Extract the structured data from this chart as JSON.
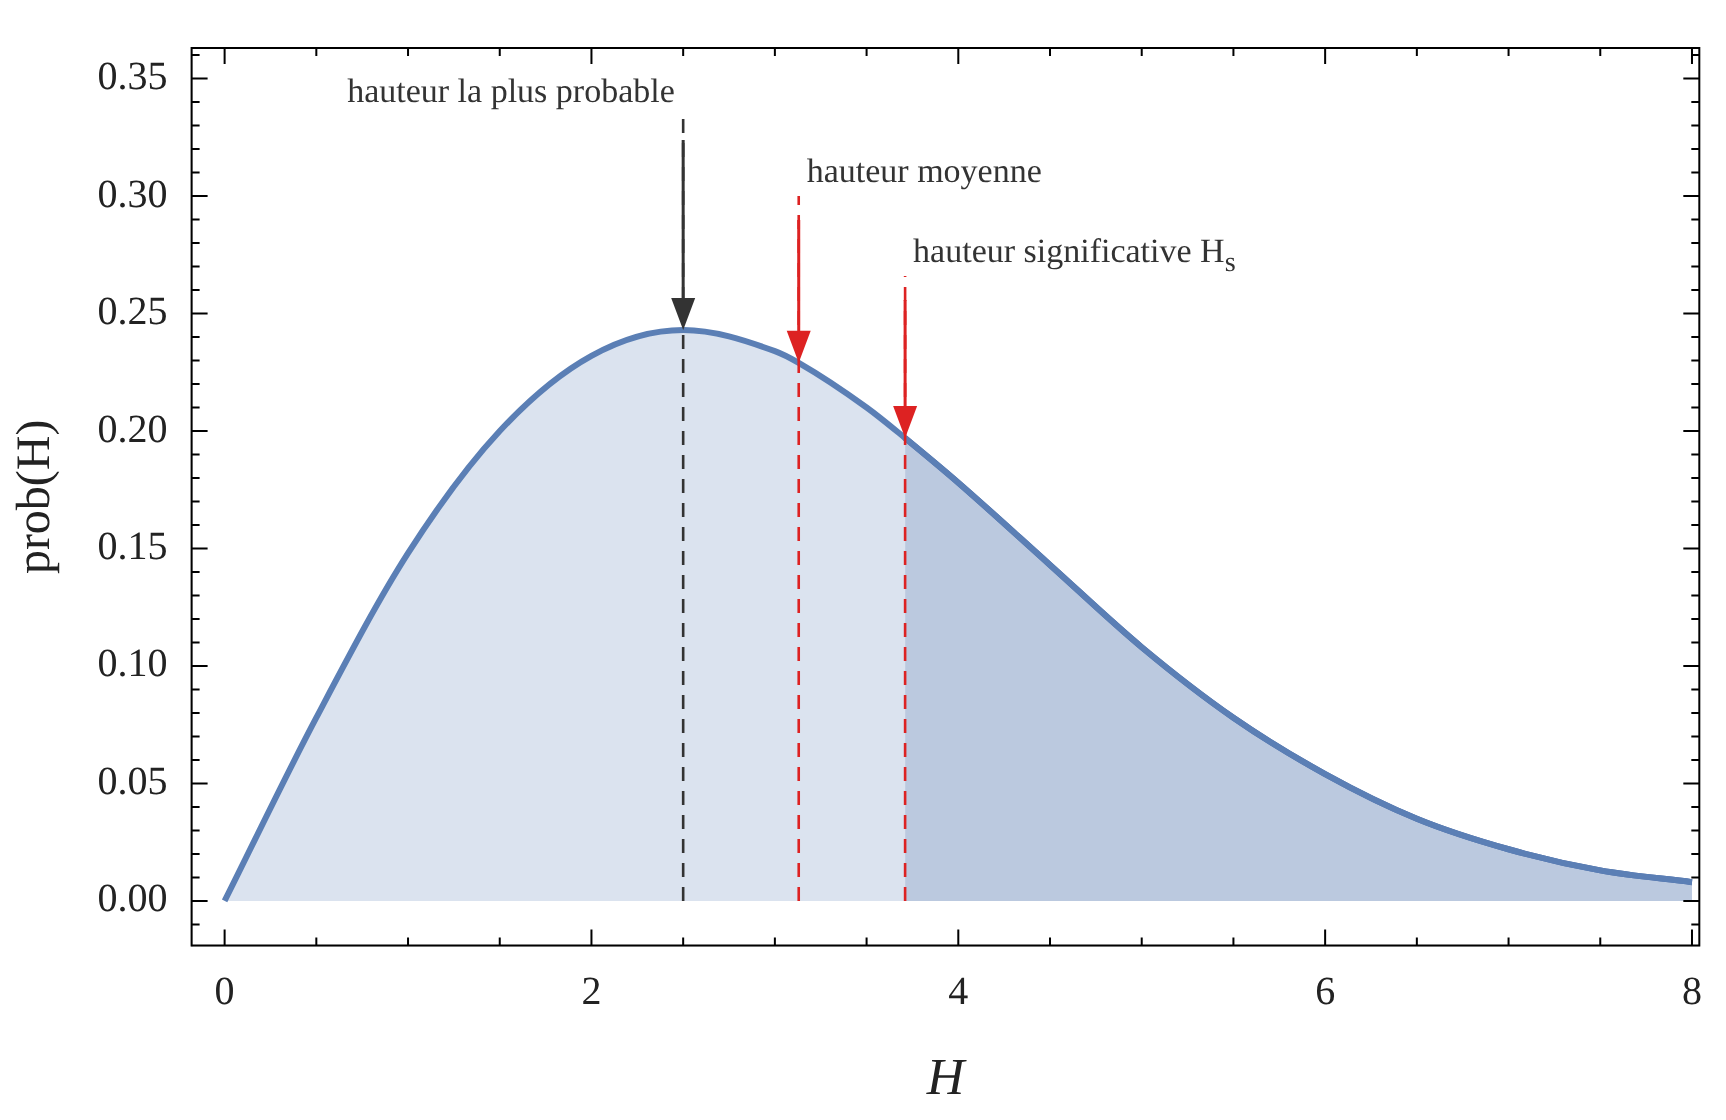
{
  "chart_data": {
    "type": "area",
    "xlabel": "H",
    "ylabel": "prob(H)",
    "series": [
      {
        "color": "#5b7fb5",
        "x": [
          0,
          0.5,
          1,
          1.5,
          2,
          2.5,
          3,
          3.13,
          3.5,
          3.71,
          4,
          4.5,
          5,
          5.5,
          6,
          6.5,
          7,
          7.5,
          8
        ],
        "values": [
          0,
          0.078,
          0.148,
          0.2,
          0.232,
          0.243,
          0.234,
          0.229,
          0.21,
          0.197,
          0.178,
          0.143,
          0.108,
          0.078,
          0.054,
          0.035,
          0.022,
          0.013,
          0.008
        ]
      },
      {
        "color": "#4a6aa5",
        "x": [
          3.71,
          4,
          4.5,
          5,
          5.5,
          6,
          6.5,
          7,
          7.5,
          8
        ],
        "values": [
          0.197,
          0.178,
          0.143,
          0.108,
          0.078,
          0.054,
          0.035,
          0.022,
          0.013,
          0.008
        ]
      }
    ],
    "xlim": [
      -0.18,
      8.04
    ],
    "xticks": [
      0,
      2,
      4,
      6,
      8
    ],
    "ylim": [
      -0.019,
      0.363
    ],
    "yticks": [
      {
        "value": 0,
        "label": "0.00"
      },
      {
        "value": 0.05,
        "label": "0.05"
      },
      {
        "value": 0.1,
        "label": "0.10"
      },
      {
        "value": 0.15,
        "label": "0.15"
      },
      {
        "value": 0.2,
        "label": "0.20"
      },
      {
        "value": 0.25,
        "label": "0.25"
      },
      {
        "value": 0.3,
        "label": "0.30"
      },
      {
        "value": 0.35,
        "label": "0.35"
      }
    ],
    "ref_lines": [
      {
        "axis": "x",
        "value": 2.5,
        "label": "hauteur la plus probable",
        "color": "#333333",
        "line_style": "dashed"
      },
      {
        "axis": "x",
        "value": 3.13,
        "label": "hauteur moyenne",
        "color": "#dd2222",
        "line_style": "dashed"
      },
      {
        "axis": "x",
        "value": 3.71,
        "label": "hauteur significative H$_{s}$",
        "color": "#dd2222",
        "line_style": "dashed"
      }
    ],
    "grid": false,
    "legend": false
  }
}
